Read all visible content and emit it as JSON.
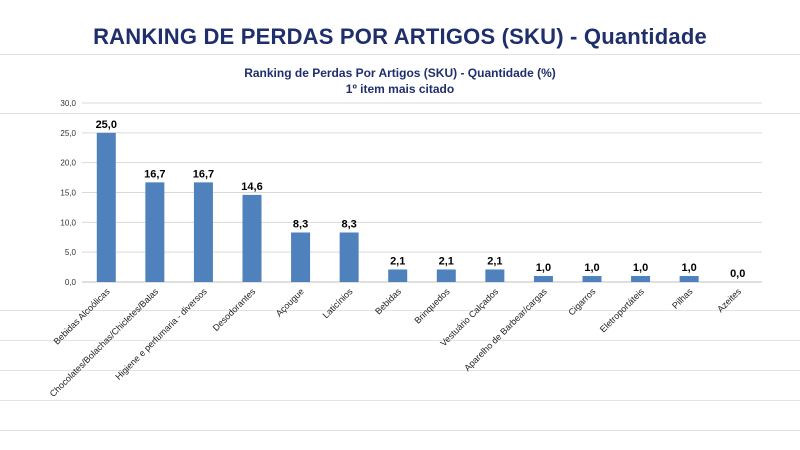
{
  "page": {
    "title": "RANKING DE PERDAS POR ARTIGOS (SKU) - Quantidade"
  },
  "chart_data": {
    "type": "bar",
    "title": "Ranking de Perdas Por Artigos (SKU) - Quantidade (%)",
    "subtitle": "1º item mais citado",
    "categories": [
      "Bebidas Alcoólicas",
      "Chocolates/Bolachas/Chicletes/Balas",
      "Higiene e perfumaria - diversos",
      "Desodorantes",
      "Açougue",
      "Laticínios",
      "Bebidas",
      "Brinquedos",
      "Vestuário Calçados",
      "Aparelho de Barbear/cargas",
      "Cigarros",
      "Eletroportáteis",
      "Pilhas",
      "Azeites"
    ],
    "values": [
      25.0,
      16.7,
      16.7,
      14.6,
      8.3,
      8.3,
      2.1,
      2.1,
      2.1,
      1.0,
      1.0,
      1.0,
      1.0,
      0.0
    ],
    "data_labels": [
      "25,0",
      "16,7",
      "16,7",
      "14,6",
      "8,3",
      "8,3",
      "2,1",
      "2,1",
      "2,1",
      "1,0",
      "1,0",
      "1,0",
      "1,0",
      "0,0"
    ],
    "ylim": [
      0,
      30
    ],
    "yticks": [
      "0,0",
      "5,0",
      "10,0",
      "15,0",
      "20,0",
      "25,0",
      "30,0"
    ],
    "xlabel": "",
    "ylabel": "",
    "grid": true,
    "legend": "none",
    "colors": {
      "bar": "#4f81bd",
      "grid": "#d9d9d9",
      "title": "#1f2f6b"
    }
  }
}
